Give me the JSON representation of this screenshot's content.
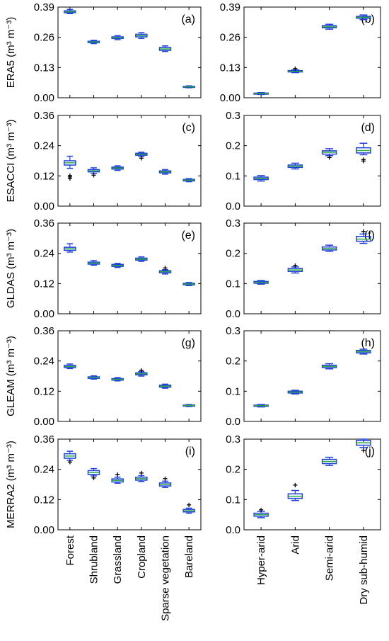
{
  "colors": {
    "box": "#1f3fd6",
    "median": "#2aa84a",
    "outlier": "#000000",
    "axis": "#000000"
  },
  "chart_data": [
    {
      "panel": "(a)",
      "type": "box",
      "ylabel": "ERA5 (m³ m⁻³)",
      "ylim": [
        0,
        0.39
      ],
      "yticks": [
        "0.00",
        "0.13",
        "0.26",
        "0.39"
      ],
      "categories": [
        "Forest",
        "Shrubland",
        "Grassland",
        "Cropland",
        "Sparse vegetation",
        "Bareland"
      ],
      "boxes": [
        {
          "whislo": 0.362,
          "q1": 0.366,
          "med": 0.37,
          "q3": 0.374,
          "whishi": 0.38,
          "fliers": []
        },
        {
          "whislo": 0.233,
          "q1": 0.237,
          "med": 0.24,
          "q3": 0.243,
          "whishi": 0.247,
          "fliers": []
        },
        {
          "whislo": 0.25,
          "q1": 0.255,
          "med": 0.258,
          "q3": 0.262,
          "whishi": 0.267,
          "fliers": []
        },
        {
          "whislo": 0.255,
          "q1": 0.262,
          "med": 0.267,
          "q3": 0.273,
          "whishi": 0.28,
          "fliers": []
        },
        {
          "whislo": 0.199,
          "q1": 0.204,
          "med": 0.21,
          "q3": 0.216,
          "whishi": 0.223,
          "fliers": []
        },
        {
          "whislo": 0.043,
          "q1": 0.045,
          "med": 0.047,
          "q3": 0.049,
          "whishi": 0.051,
          "fliers": []
        }
      ]
    },
    {
      "panel": "(b)",
      "type": "box",
      "ylabel": "",
      "ylim": [
        0,
        0.39
      ],
      "yticks": [
        "0.00",
        "0.13",
        "0.26",
        "0.39"
      ],
      "categories": [
        "Hyper-arid",
        "Arid",
        "Semi-arid",
        "Dry sub-humid"
      ],
      "boxes": [
        {
          "whislo": 0.014,
          "q1": 0.016,
          "med": 0.018,
          "q3": 0.02,
          "whishi": 0.022,
          "fliers": []
        },
        {
          "whislo": 0.108,
          "q1": 0.111,
          "med": 0.114,
          "q3": 0.117,
          "whishi": 0.12,
          "fliers": [
            0.125
          ]
        },
        {
          "whislo": 0.295,
          "q1": 0.301,
          "med": 0.305,
          "q3": 0.31,
          "whishi": 0.316,
          "fliers": []
        },
        {
          "whislo": 0.336,
          "q1": 0.342,
          "med": 0.346,
          "q3": 0.35,
          "whishi": 0.356,
          "fliers": []
        }
      ]
    },
    {
      "panel": "(c)",
      "type": "box",
      "ylabel": "ESACCI (m³ m⁻³)",
      "ylim": [
        0,
        0.36
      ],
      "yticks": [
        "0.00",
        "0.12",
        "0.24",
        "0.36"
      ],
      "categories": [
        "Forest",
        "Shrubland",
        "Grassland",
        "Cropland",
        "Sparse vegetation",
        "Bareland"
      ],
      "boxes": [
        {
          "whislo": 0.15,
          "q1": 0.163,
          "med": 0.172,
          "q3": 0.18,
          "whishi": 0.198,
          "fliers": [
            0.11,
            0.116,
            0.121
          ]
        },
        {
          "whislo": 0.13,
          "q1": 0.136,
          "med": 0.14,
          "q3": 0.145,
          "whishi": 0.152,
          "fliers": [
            0.123
          ]
        },
        {
          "whislo": 0.142,
          "q1": 0.147,
          "med": 0.151,
          "q3": 0.155,
          "whishi": 0.16,
          "fliers": []
        },
        {
          "whislo": 0.197,
          "q1": 0.202,
          "med": 0.206,
          "q3": 0.21,
          "whishi": 0.214,
          "fliers": [
            0.19
          ]
        },
        {
          "whislo": 0.127,
          "q1": 0.132,
          "med": 0.136,
          "q3": 0.14,
          "whishi": 0.145,
          "fliers": []
        },
        {
          "whislo": 0.097,
          "q1": 0.1,
          "med": 0.103,
          "q3": 0.106,
          "whishi": 0.109,
          "fliers": []
        }
      ]
    },
    {
      "panel": "(d)",
      "type": "box",
      "ylabel": "",
      "ylim": [
        0,
        0.3
      ],
      "yticks": [
        "0.0",
        "0.1",
        "0.2",
        "0.3"
      ],
      "categories": [
        "Hyper-arid",
        "Arid",
        "Semi-arid",
        "Dry sub-humid"
      ],
      "boxes": [
        {
          "whislo": 0.083,
          "q1": 0.088,
          "med": 0.092,
          "q3": 0.096,
          "whishi": 0.101,
          "fliers": []
        },
        {
          "whislo": 0.123,
          "q1": 0.128,
          "med": 0.132,
          "q3": 0.136,
          "whishi": 0.142,
          "fliers": []
        },
        {
          "whislo": 0.167,
          "q1": 0.172,
          "med": 0.178,
          "q3": 0.183,
          "whishi": 0.19,
          "fliers": [
            0.161
          ]
        },
        {
          "whislo": 0.17,
          "q1": 0.176,
          "med": 0.184,
          "q3": 0.193,
          "whishi": 0.208,
          "fliers": [
            0.149,
            0.153
          ]
        }
      ]
    },
    {
      "panel": "(e)",
      "type": "box",
      "ylabel": "GLDAS (m³ m⁻³)",
      "ylim": [
        0,
        0.36
      ],
      "yticks": [
        "0.00",
        "0.12",
        "0.24",
        "0.36"
      ],
      "categories": [
        "Forest",
        "Shrubland",
        "Grassland",
        "Cropland",
        "Sparse vegetation",
        "Bareland"
      ],
      "boxes": [
        {
          "whislo": 0.245,
          "q1": 0.252,
          "med": 0.258,
          "q3": 0.264,
          "whishi": 0.278,
          "fliers": []
        },
        {
          "whislo": 0.193,
          "q1": 0.197,
          "med": 0.201,
          "q3": 0.205,
          "whishi": 0.211,
          "fliers": []
        },
        {
          "whislo": 0.184,
          "q1": 0.188,
          "med": 0.192,
          "q3": 0.196,
          "whishi": 0.2,
          "fliers": []
        },
        {
          "whislo": 0.208,
          "q1": 0.213,
          "med": 0.217,
          "q3": 0.221,
          "whishi": 0.226,
          "fliers": []
        },
        {
          "whislo": 0.158,
          "q1": 0.163,
          "med": 0.167,
          "q3": 0.171,
          "whishi": 0.175,
          "fliers": [
            0.181
          ]
        },
        {
          "whislo": 0.112,
          "q1": 0.115,
          "med": 0.118,
          "q3": 0.121,
          "whishi": 0.124,
          "fliers": []
        }
      ]
    },
    {
      "panel": "(f)",
      "type": "box",
      "ylabel": "",
      "ylim": [
        0,
        0.3
      ],
      "yticks": [
        "0.0",
        "0.1",
        "0.2",
        "0.3"
      ],
      "categories": [
        "Hyper-arid",
        "Arid",
        "Semi-arid",
        "Dry sub-humid"
      ],
      "boxes": [
        {
          "whislo": 0.098,
          "q1": 0.101,
          "med": 0.104,
          "q3": 0.107,
          "whishi": 0.11,
          "fliers": []
        },
        {
          "whislo": 0.135,
          "q1": 0.14,
          "med": 0.145,
          "q3": 0.15,
          "whishi": 0.155,
          "fliers": [
            0.159
          ]
        },
        {
          "whislo": 0.207,
          "q1": 0.211,
          "med": 0.216,
          "q3": 0.221,
          "whishi": 0.227,
          "fliers": []
        },
        {
          "whislo": 0.233,
          "q1": 0.24,
          "med": 0.247,
          "q3": 0.256,
          "whishi": 0.264,
          "fliers": [
            0.272
          ]
        }
      ]
    },
    {
      "panel": "(g)",
      "type": "box",
      "ylabel": "GLEAM (m³ m⁻³)",
      "ylim": [
        0,
        0.36
      ],
      "yticks": [
        "0.00",
        "0.12",
        "0.24",
        "0.36"
      ],
      "categories": [
        "Forest",
        "Shrubland",
        "Grassland",
        "Cropland",
        "Sparse vegetation",
        "Bareland"
      ],
      "boxes": [
        {
          "whislo": 0.21,
          "q1": 0.214,
          "med": 0.218,
          "q3": 0.223,
          "whishi": 0.228,
          "fliers": []
        },
        {
          "whislo": 0.168,
          "q1": 0.171,
          "med": 0.174,
          "q3": 0.177,
          "whishi": 0.181,
          "fliers": []
        },
        {
          "whislo": 0.161,
          "q1": 0.164,
          "med": 0.167,
          "q3": 0.17,
          "whishi": 0.174,
          "fliers": []
        },
        {
          "whislo": 0.18,
          "q1": 0.185,
          "med": 0.189,
          "q3": 0.193,
          "whishi": 0.198,
          "fliers": [
            0.202
          ]
        },
        {
          "whislo": 0.132,
          "q1": 0.136,
          "med": 0.14,
          "q3": 0.144,
          "whishi": 0.148,
          "fliers": []
        },
        {
          "whislo": 0.059,
          "q1": 0.061,
          "med": 0.063,
          "q3": 0.065,
          "whishi": 0.067,
          "fliers": []
        }
      ]
    },
    {
      "panel": "(h)",
      "type": "box",
      "ylabel": "",
      "ylim": [
        0,
        0.3
      ],
      "yticks": [
        "0.0",
        "0.1",
        "0.2",
        "0.3"
      ],
      "categories": [
        "Hyper-arid",
        "Arid",
        "Semi-arid",
        "Dry sub-humid"
      ],
      "boxes": [
        {
          "whislo": 0.048,
          "q1": 0.05,
          "med": 0.052,
          "q3": 0.054,
          "whishi": 0.056,
          "fliers": []
        },
        {
          "whislo": 0.091,
          "q1": 0.094,
          "med": 0.097,
          "q3": 0.1,
          "whishi": 0.103,
          "fliers": []
        },
        {
          "whislo": 0.174,
          "q1": 0.178,
          "med": 0.182,
          "q3": 0.186,
          "whishi": 0.191,
          "fliers": []
        },
        {
          "whislo": 0.223,
          "q1": 0.227,
          "med": 0.231,
          "q3": 0.235,
          "whishi": 0.239,
          "fliers": []
        }
      ]
    },
    {
      "panel": "(i)",
      "type": "box",
      "ylabel": "MERRA2 (m³ m⁻³)",
      "ylim": [
        0,
        0.36
      ],
      "yticks": [
        "0.00",
        "0.12",
        "0.24",
        "0.36"
      ],
      "categories": [
        "Forest",
        "Shrubland",
        "Grassland",
        "Cropland",
        "Sparse vegetation",
        "Bareland"
      ],
      "boxes": [
        {
          "whislo": 0.276,
          "q1": 0.284,
          "med": 0.293,
          "q3": 0.302,
          "whishi": 0.312,
          "fliers": [
            0.268
          ]
        },
        {
          "whislo": 0.214,
          "q1": 0.22,
          "med": 0.227,
          "q3": 0.235,
          "whishi": 0.243,
          "fliers": [
            0.206
          ]
        },
        {
          "whislo": 0.185,
          "q1": 0.19,
          "med": 0.196,
          "q3": 0.202,
          "whishi": 0.209,
          "fliers": [
            0.22
          ]
        },
        {
          "whislo": 0.192,
          "q1": 0.197,
          "med": 0.203,
          "q3": 0.209,
          "whishi": 0.215,
          "fliers": [
            0.225
          ]
        },
        {
          "whislo": 0.168,
          "q1": 0.174,
          "med": 0.18,
          "q3": 0.186,
          "whishi": 0.193,
          "fliers": [
            0.203
          ]
        },
        {
          "whislo": 0.066,
          "q1": 0.071,
          "med": 0.076,
          "q3": 0.081,
          "whishi": 0.086,
          "fliers": [
            0.098
          ]
        }
      ]
    },
    {
      "panel": "(j)",
      "type": "box",
      "ylabel": "",
      "ylim": [
        0,
        0.3
      ],
      "yticks": [
        "0.0",
        "0.1",
        "0.2",
        "0.3"
      ],
      "categories": [
        "Hyper-arid",
        "Arid",
        "Semi-arid",
        "Dry sub-humid"
      ],
      "boxes": [
        {
          "whislo": 0.04,
          "q1": 0.045,
          "med": 0.05,
          "q3": 0.055,
          "whishi": 0.061,
          "fliers": [
            0.066
          ]
        },
        {
          "whislo": 0.097,
          "q1": 0.104,
          "med": 0.111,
          "q3": 0.119,
          "whishi": 0.13,
          "fliers": [
            0.148
          ]
        },
        {
          "whislo": 0.213,
          "q1": 0.219,
          "med": 0.226,
          "q3": 0.233,
          "whishi": 0.24,
          "fliers": []
        },
        {
          "whislo": 0.272,
          "q1": 0.28,
          "med": 0.288,
          "q3": 0.296,
          "whishi": 0.3,
          "fliers": [
            0.263
          ]
        }
      ]
    }
  ]
}
